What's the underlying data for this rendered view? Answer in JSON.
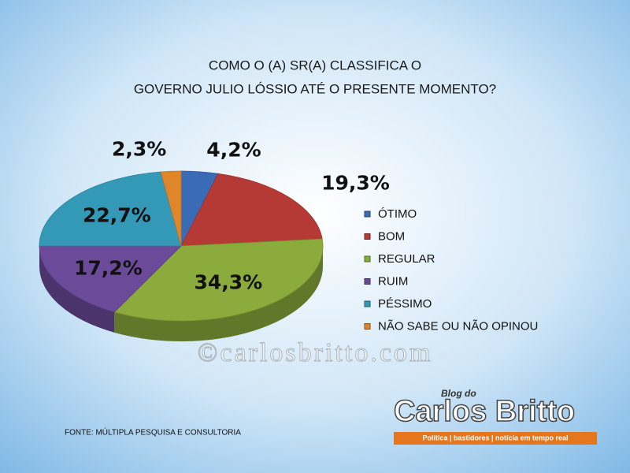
{
  "chart_data": {
    "type": "pie",
    "title": [
      "COMO O (A) SR(A) CLASSIFICA O",
      "GOVERNO JULIO LÓSSIO ATÉ O PRESENTE MOMENTO?"
    ],
    "categories": [
      "ÓTIMO",
      "BOM",
      "REGULAR",
      "RUIM",
      "PÉSSIMO",
      "NÃO SABE OU NÃO OPINOU"
    ],
    "values": [
      4.2,
      19.3,
      34.3,
      17.2,
      22.7,
      2.3
    ],
    "value_labels": [
      "4,2%",
      "19,3%",
      "34,3%",
      "17,2%",
      "22,7%",
      "2,3%"
    ],
    "colors": [
      "#3a6bb5",
      "#b53a36",
      "#8bab3c",
      "#6b4a9a",
      "#3399b6",
      "#e0862a"
    ],
    "legend": "right"
  },
  "source": "FONTE: MÚLTIPLA PESQUISA E CONSULTORIA",
  "watermark": "©carlosbritto.com",
  "logo": {
    "kicker": "Blog do",
    "name": "Carlos Britto",
    "tagline": "Política | bastidores | notícia em tempo real"
  }
}
